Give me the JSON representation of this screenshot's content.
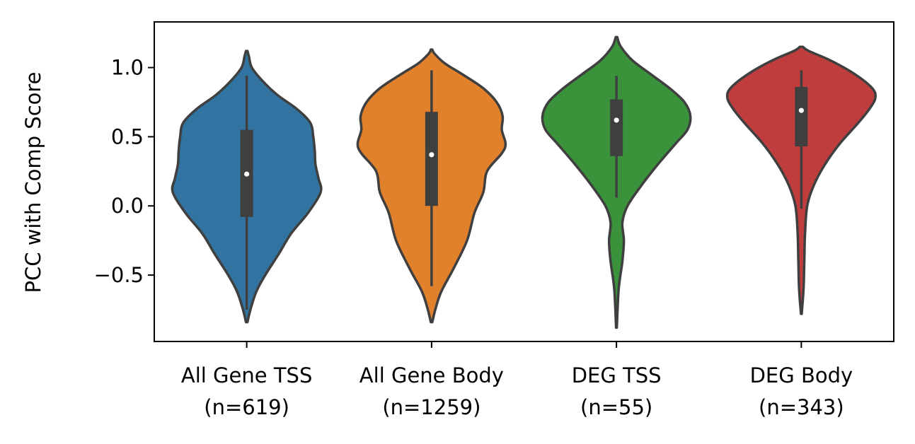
{
  "chart_data": {
    "type": "violin",
    "title": "",
    "xlabel": "",
    "ylabel": "PCC with Comp Score",
    "ylim": [
      -0.98,
      1.33
    ],
    "yticks": [
      {
        "value": -0.5,
        "label": "−0.5"
      },
      {
        "value": 0.0,
        "label": "0.0"
      },
      {
        "value": 0.5,
        "label": "0.5"
      },
      {
        "value": 1.0,
        "label": "1.0"
      }
    ],
    "grid": false,
    "categories": [
      {
        "line1": "All Gene TSS",
        "line2": "(n=619)",
        "n": 619,
        "color": "#3274a1",
        "median": 0.23,
        "q1": -0.08,
        "q3": 0.55,
        "whisker_low": -0.75,
        "whisker_high": 0.94,
        "density": [
          [
            -0.84,
            0.01
          ],
          [
            -0.75,
            0.05
          ],
          [
            -0.62,
            0.13
          ],
          [
            -0.5,
            0.25
          ],
          [
            -0.35,
            0.43
          ],
          [
            -0.2,
            0.6
          ],
          [
            -0.05,
            0.83
          ],
          [
            0.1,
            1.0
          ],
          [
            0.2,
            0.97
          ],
          [
            0.3,
            0.93
          ],
          [
            0.4,
            0.92
          ],
          [
            0.5,
            0.9
          ],
          [
            0.6,
            0.86
          ],
          [
            0.7,
            0.68
          ],
          [
            0.8,
            0.42
          ],
          [
            0.9,
            0.22
          ],
          [
            1.0,
            0.07
          ],
          [
            1.08,
            0.03
          ],
          [
            1.12,
            0.01
          ]
        ]
      },
      {
        "line1": "All Gene Body",
        "line2": "(n=1259)",
        "n": 1259,
        "color": "#e1812c",
        "median": 0.37,
        "q1": 0.0,
        "q3": 0.68,
        "whisker_low": -0.58,
        "whisker_high": 0.98,
        "density": [
          [
            -0.84,
            0.01
          ],
          [
            -0.75,
            0.05
          ],
          [
            -0.62,
            0.13
          ],
          [
            -0.45,
            0.3
          ],
          [
            -0.25,
            0.48
          ],
          [
            -0.05,
            0.58
          ],
          [
            0.1,
            0.7
          ],
          [
            0.25,
            0.75
          ],
          [
            0.38,
            0.95
          ],
          [
            0.45,
            1.0
          ],
          [
            0.55,
            0.95
          ],
          [
            0.65,
            0.96
          ],
          [
            0.75,
            0.88
          ],
          [
            0.85,
            0.7
          ],
          [
            0.95,
            0.42
          ],
          [
            1.03,
            0.18
          ],
          [
            1.1,
            0.04
          ],
          [
            1.13,
            0.01
          ]
        ]
      },
      {
        "line1": "DEG TSS",
        "line2": "(n=55)",
        "n": 55,
        "color": "#3a923a",
        "median": 0.62,
        "q1": 0.36,
        "q3": 0.77,
        "whisker_low": 0.06,
        "whisker_high": 0.94,
        "density": [
          [
            -0.88,
            0.005
          ],
          [
            -0.6,
            0.03
          ],
          [
            -0.4,
            0.08
          ],
          [
            -0.25,
            0.1
          ],
          [
            -0.12,
            0.08
          ],
          [
            0.0,
            0.15
          ],
          [
            0.15,
            0.34
          ],
          [
            0.3,
            0.56
          ],
          [
            0.45,
            0.8
          ],
          [
            0.55,
            0.96
          ],
          [
            0.65,
            1.0
          ],
          [
            0.75,
            0.92
          ],
          [
            0.85,
            0.72
          ],
          [
            0.95,
            0.47
          ],
          [
            1.05,
            0.22
          ],
          [
            1.15,
            0.06
          ],
          [
            1.22,
            0.01
          ]
        ]
      },
      {
        "line1": "DEG Body",
        "line2": "(n=343)",
        "n": 343,
        "color": "#c03d3e",
        "median": 0.69,
        "q1": 0.43,
        "q3": 0.86,
        "whisker_low": -0.02,
        "whisker_high": 0.98,
        "density": [
          [
            -0.78,
            0.005
          ],
          [
            -0.6,
            0.03
          ],
          [
            -0.4,
            0.04
          ],
          [
            -0.2,
            0.05
          ],
          [
            0.0,
            0.08
          ],
          [
            0.15,
            0.17
          ],
          [
            0.3,
            0.32
          ],
          [
            0.45,
            0.52
          ],
          [
            0.6,
            0.77
          ],
          [
            0.7,
            0.92
          ],
          [
            0.78,
            1.0
          ],
          [
            0.85,
            0.96
          ],
          [
            0.95,
            0.73
          ],
          [
            1.05,
            0.4
          ],
          [
            1.12,
            0.1
          ],
          [
            1.15,
            0.02
          ]
        ]
      }
    ]
  }
}
